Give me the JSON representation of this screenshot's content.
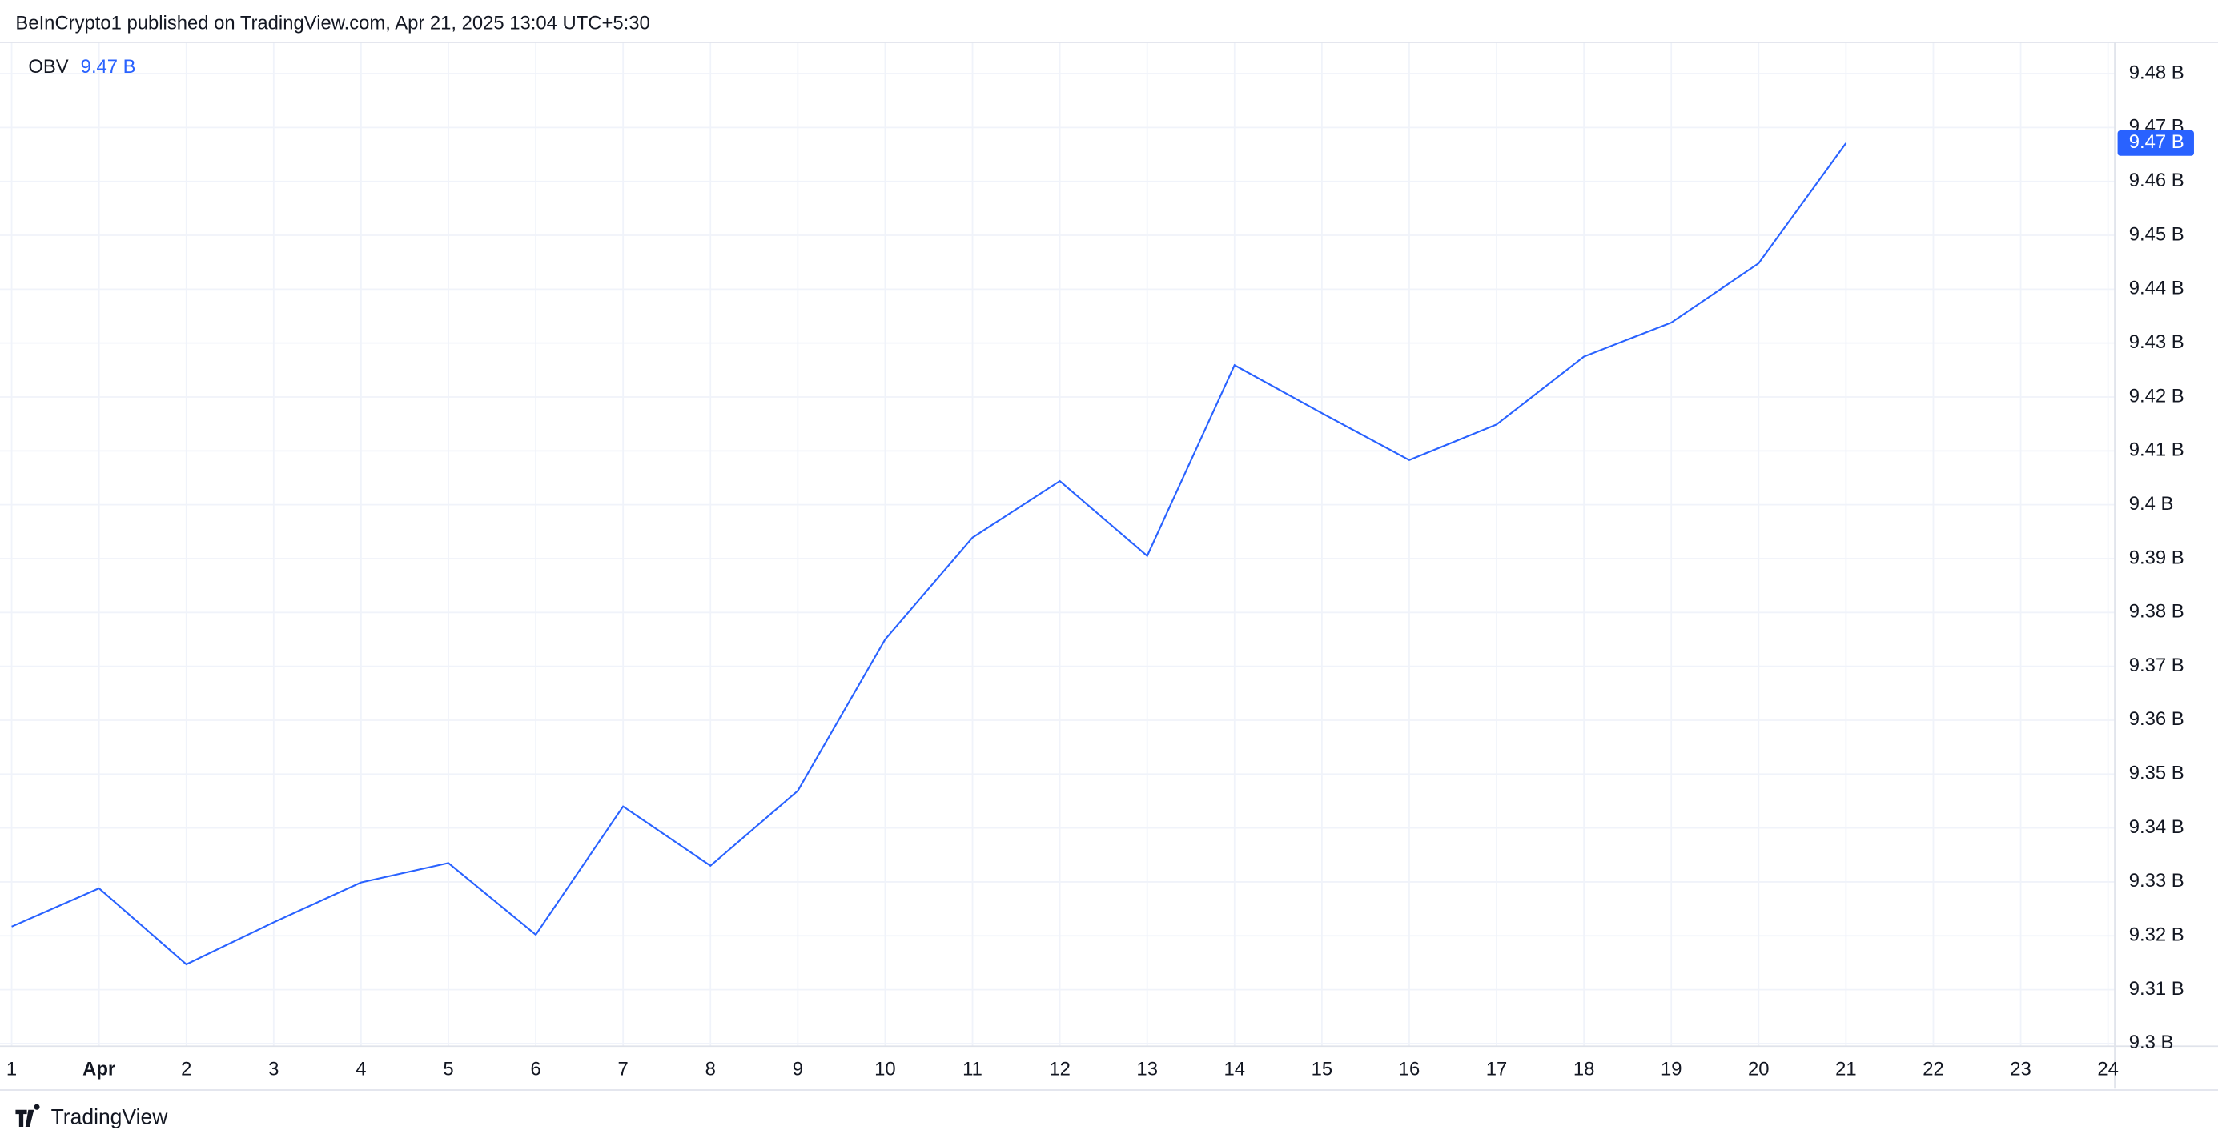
{
  "header": {
    "text": "BeInCrypto1 published on TradingView.com, Apr 21, 2025 13:04 UTC+5:30"
  },
  "footer": {
    "brand": "TradingView"
  },
  "chart_data": {
    "type": "line",
    "grid": true,
    "categories": [
      "1",
      "Apr",
      "2",
      "3",
      "4",
      "5",
      "6",
      "7",
      "8",
      "9",
      "10",
      "11",
      "12",
      "13",
      "14",
      "15",
      "16",
      "17",
      "18",
      "19",
      "20",
      "21",
      "22",
      "23",
      "24"
    ],
    "series": [
      {
        "name": "OBV",
        "color": "#2962ff",
        "values": [
          9.3217,
          9.3288,
          9.3147,
          9.3225,
          9.3299,
          9.3335,
          9.3202,
          9.344,
          9.333,
          9.3469,
          9.375,
          9.3939,
          9.4044,
          9.3905,
          9.4259,
          9.417,
          9.4083,
          9.4149,
          9.4275,
          9.4338,
          9.4448,
          9.4671,
          null,
          null,
          null
        ],
        "last_label": "9.47 B"
      }
    ],
    "ylim": [
      9.2995,
      9.4858
    ],
    "yticks": [
      {
        "value": 9.3,
        "label": "9.3 B"
      },
      {
        "value": 9.31,
        "label": "9.31 B"
      },
      {
        "value": 9.32,
        "label": "9.32 B"
      },
      {
        "value": 9.33,
        "label": "9.33 B"
      },
      {
        "value": 9.34,
        "label": "9.34 B"
      },
      {
        "value": 9.35,
        "label": "9.35 B"
      },
      {
        "value": 9.36,
        "label": "9.36 B"
      },
      {
        "value": 9.37,
        "label": "9.37 B"
      },
      {
        "value": 9.38,
        "label": "9.38 B"
      },
      {
        "value": 9.39,
        "label": "9.39 B"
      },
      {
        "value": 9.4,
        "label": "9.4 B"
      },
      {
        "value": 9.41,
        "label": "9.41 B"
      },
      {
        "value": 9.42,
        "label": "9.42 B"
      },
      {
        "value": 9.43,
        "label": "9.43 B"
      },
      {
        "value": 9.44,
        "label": "9.44 B"
      },
      {
        "value": 9.45,
        "label": "9.45 B"
      },
      {
        "value": 9.46,
        "label": "9.46 B"
      },
      {
        "value": 9.47,
        "label": "9.47 B"
      },
      {
        "value": 9.48,
        "label": "9.48 B"
      }
    ]
  }
}
